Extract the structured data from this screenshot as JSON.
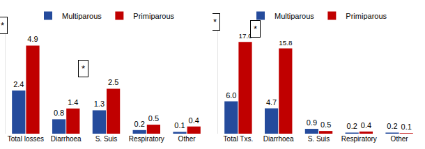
{
  "chart_data": [
    {
      "type": "bar",
      "categories": [
        "Total losses",
        "Diarrhoea",
        "S. Suis",
        "Respiratory",
        "Other"
      ],
      "series": [
        {
          "name": "Multiparous",
          "color": "#254b9c",
          "values": [
            2.4,
            0.8,
            1.3,
            0.2,
            0.1
          ]
        },
        {
          "name": "Primiparous",
          "color": "#c00000",
          "values": [
            4.9,
            1.4,
            2.5,
            0.5,
            0.4
          ]
        }
      ],
      "ylim": [
        0,
        6
      ],
      "data_labels": true,
      "tick_labels": "x",
      "grid": false,
      "legend": "top",
      "annotations": [
        {
          "text": "*",
          "x": "Total losses"
        },
        {
          "text": "*",
          "x": "S. Suis"
        }
      ]
    },
    {
      "type": "bar",
      "categories": [
        "Total Txs.",
        "Diarrhoea",
        "S. Suis",
        "Respiratory",
        "Other"
      ],
      "series": [
        {
          "name": "Multiparous",
          "color": "#254b9c",
          "values": [
            6,
            4.7,
            0.9,
            0.2,
            0.2
          ],
          "value_labels": [
            "6.0",
            "4.7",
            "0.9",
            "0.2",
            "0.2"
          ]
        },
        {
          "name": "Primiparous",
          "color": "#c00000",
          "values": [
            17,
            15.8,
            0.5,
            0.4,
            0.1
          ],
          "value_labels": [
            "17.0",
            "15.8",
            "0.5",
            "0.4",
            "0.1"
          ]
        }
      ],
      "ylim": [
        0,
        20
      ],
      "data_labels": true,
      "tick_labels": "x",
      "grid": false,
      "legend": "top",
      "annotations": [
        {
          "text": "*",
          "x": "Total Txs."
        },
        {
          "text": "*",
          "x": "Diarrhoea"
        }
      ]
    }
  ]
}
